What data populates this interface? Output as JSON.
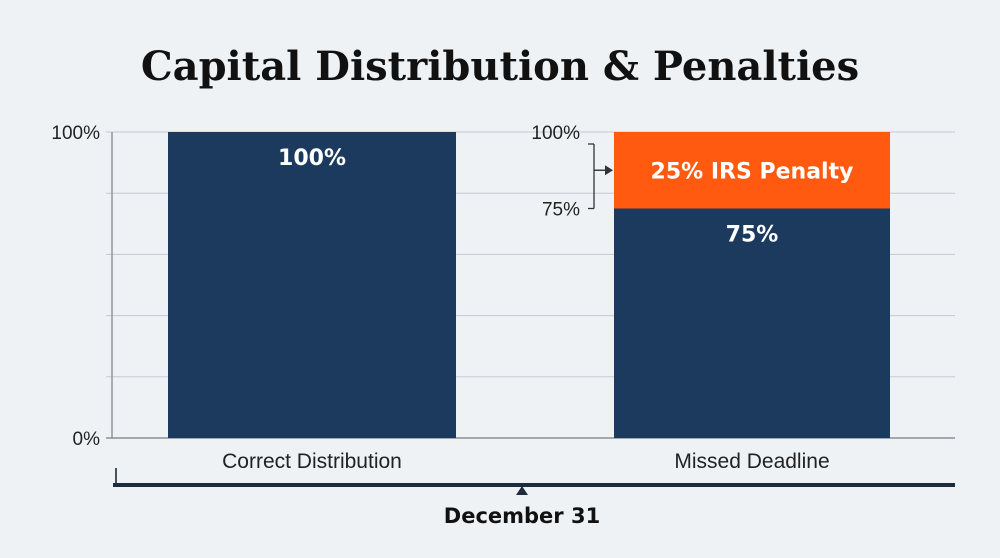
{
  "chart_data": {
    "type": "bar",
    "stacked": true,
    "title": "Capital Distribution & Penalties",
    "categories": [
      "Correct Distribution",
      "Missed Deadline"
    ],
    "series": [
      {
        "key": "distribution",
        "values": [
          100,
          75
        ],
        "labels": [
          "100%",
          "75%"
        ],
        "color": "#1b3a5e"
      },
      {
        "key": "penalty",
        "values": [
          0,
          25
        ],
        "labels": [
          "",
          "25% IRS Penalty"
        ],
        "color": "#ff5a0f"
      }
    ],
    "ylim": [
      0,
      100
    ],
    "y_ticks_left": [
      "100%",
      "0%"
    ],
    "y_ticks_right": [
      "100%",
      "75%"
    ],
    "grid": true,
    "timeline": {
      "marker_label": "December 31"
    }
  }
}
